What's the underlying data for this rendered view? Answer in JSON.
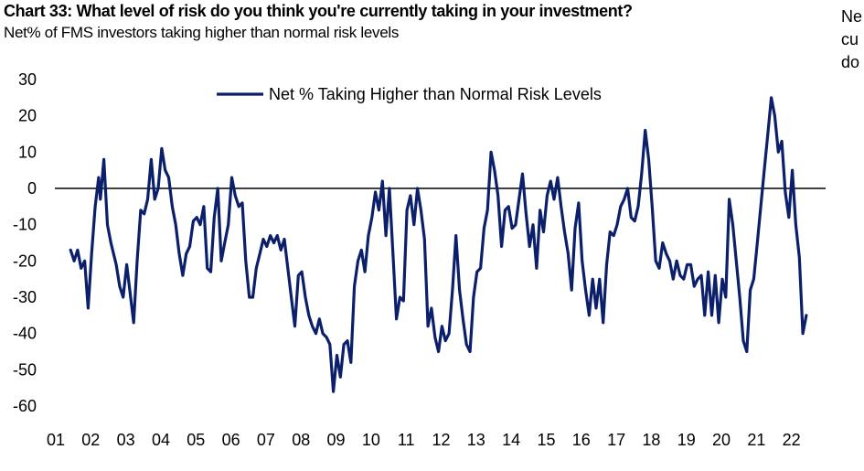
{
  "header": {
    "title": "Chart 33: What level of risk do you think you're currently taking in your investment?",
    "subtitle": "Net% of FMS investors taking higher than normal risk levels",
    "side_text": "Ne\ncu\ndo"
  },
  "chart_data": {
    "type": "line",
    "title": "Chart 33: What level of risk do you think you're currently taking in your investment?",
    "subtitle": "Net% of FMS investors taking higher than normal risk levels",
    "xlabel": "",
    "ylabel": "",
    "ylim": [
      -60,
      30
    ],
    "xlim": [
      2001,
      2023
    ],
    "yticks": [
      "30",
      "20",
      "10",
      "0",
      "-10",
      "-20",
      "-30",
      "-40",
      "-50",
      "-60"
    ],
    "xticks": [
      {
        "x": 2001,
        "label": "01"
      },
      {
        "x": 2002,
        "label": "02"
      },
      {
        "x": 2003,
        "label": "03"
      },
      {
        "x": 2004,
        "label": "04"
      },
      {
        "x": 2005,
        "label": "05"
      },
      {
        "x": 2006,
        "label": "06"
      },
      {
        "x": 2007,
        "label": "07"
      },
      {
        "x": 2008,
        "label": "08"
      },
      {
        "x": 2009,
        "label": "09"
      },
      {
        "x": 2010,
        "label": "10"
      },
      {
        "x": 2011,
        "label": "11"
      },
      {
        "x": 2012,
        "label": "12"
      },
      {
        "x": 2013,
        "label": "13"
      },
      {
        "x": 2014,
        "label": "14"
      },
      {
        "x": 2015,
        "label": "15"
      },
      {
        "x": 2016,
        "label": "16"
      },
      {
        "x": 2017,
        "label": "17"
      },
      {
        "x": 2018,
        "label": "18"
      },
      {
        "x": 2019,
        "label": "19"
      },
      {
        "x": 2020,
        "label": "20"
      },
      {
        "x": 2021,
        "label": "21"
      },
      {
        "x": 2022,
        "label": "22"
      }
    ],
    "legend_position": "top-center",
    "grid": false,
    "zero_line": true,
    "colors": {
      "series": "#0b1f6b",
      "zero_line": "#000000"
    },
    "series": [
      {
        "name": "Net % Taking Higher than Normal Risk Levels",
        "x": [
          2001.45,
          2001.55,
          2001.65,
          2001.75,
          2001.85,
          2001.95,
          2002.05,
          2002.15,
          2002.25,
          2002.3,
          2002.4,
          2002.5,
          2002.6,
          2002.75,
          2002.85,
          2002.95,
          2003.05,
          2003.15,
          2003.25,
          2003.35,
          2003.45,
          2003.55,
          2003.65,
          2003.75,
          2003.85,
          2003.95,
          2004.05,
          2004.15,
          2004.25,
          2004.35,
          2004.45,
          2004.55,
          2004.65,
          2004.75,
          2004.85,
          2004.95,
          2005.05,
          2005.15,
          2005.25,
          2005.35,
          2005.45,
          2005.55,
          2005.65,
          2005.75,
          2005.85,
          2005.95,
          2006.05,
          2006.15,
          2006.25,
          2006.35,
          2006.45,
          2006.55,
          2006.65,
          2006.75,
          2006.85,
          2006.95,
          2007.05,
          2007.15,
          2007.25,
          2007.35,
          2007.45,
          2007.55,
          2007.65,
          2007.75,
          2007.85,
          2007.95,
          2008.05,
          2008.15,
          2008.25,
          2008.35,
          2008.45,
          2008.55,
          2008.65,
          2008.75,
          2008.85,
          2008.95,
          2009.05,
          2009.15,
          2009.25,
          2009.35,
          2009.45,
          2009.55,
          2009.65,
          2009.75,
          2009.85,
          2009.95,
          2010.05,
          2010.15,
          2010.25,
          2010.35,
          2010.45,
          2010.55,
          2010.65,
          2010.75,
          2010.85,
          2010.95,
          2011.05,
          2011.15,
          2011.25,
          2011.35,
          2011.45,
          2011.55,
          2011.65,
          2011.75,
          2011.85,
          2011.95,
          2012.05,
          2012.15,
          2012.25,
          2012.35,
          2012.45,
          2012.55,
          2012.65,
          2012.75,
          2012.85,
          2012.95,
          2013.05,
          2013.15,
          2013.25,
          2013.35,
          2013.45,
          2013.55,
          2013.65,
          2013.75,
          2013.85,
          2013.95,
          2014.05,
          2014.15,
          2014.25,
          2014.35,
          2014.45,
          2014.55,
          2014.65,
          2014.75,
          2014.85,
          2014.95,
          2015.05,
          2015.15,
          2015.25,
          2015.35,
          2015.45,
          2015.55,
          2015.65,
          2015.75,
          2015.85,
          2015.95,
          2016.05,
          2016.15,
          2016.25,
          2016.35,
          2016.45,
          2016.55,
          2016.65,
          2016.75,
          2016.85,
          2016.95,
          2017.05,
          2017.15,
          2017.25,
          2017.35,
          2017.45,
          2017.55,
          2017.65,
          2017.75,
          2017.85,
          2017.95,
          2018.05,
          2018.15,
          2018.25,
          2018.35,
          2018.45,
          2018.55,
          2018.65,
          2018.75,
          2018.85,
          2018.95,
          2019.05,
          2019.15,
          2019.25,
          2019.35,
          2019.45,
          2019.55,
          2019.65,
          2019.75,
          2019.85,
          2019.95,
          2020.05,
          2020.15,
          2020.25,
          2020.35,
          2020.45,
          2020.55,
          2020.65,
          2020.75,
          2020.85,
          2020.95,
          2021.05,
          2021.15,
          2021.25,
          2021.35,
          2021.45,
          2021.55,
          2021.65,
          2021.75,
          2021.85,
          2021.95,
          2022.05,
          2022.15,
          2022.25,
          2022.35,
          2022.45
        ],
        "y": [
          -17,
          -20,
          -17,
          -22,
          -20,
          -33,
          -18,
          -5,
          3,
          -3,
          8,
          -10,
          -15,
          -21,
          -27,
          -30,
          -21,
          -29,
          -37,
          -20,
          -6,
          -7,
          -3,
          8,
          -3,
          0,
          11,
          5,
          3,
          -5,
          -10,
          -18,
          -24,
          -18,
          -16,
          -9,
          -8,
          -10,
          -5,
          -22,
          -23,
          -8,
          0,
          -20,
          -15,
          -10,
          3,
          -2,
          -5,
          -4,
          -20,
          -30,
          -30,
          -22,
          -18,
          -14,
          -16,
          -13,
          -15,
          -13,
          -17,
          -14,
          -22,
          -30,
          -38,
          -24,
          -23,
          -30,
          -35,
          -38,
          -40,
          -36,
          -40,
          -41,
          -43,
          -56,
          -46,
          -52,
          -43,
          -42,
          -48,
          -27,
          -20,
          -17,
          -23,
          -13,
          -8,
          -1,
          -6,
          2,
          -13,
          0,
          -18,
          -36,
          -30,
          -31,
          -6,
          -2,
          -10,
          0,
          -6,
          -14,
          -38,
          -33,
          -41,
          -45,
          -38,
          -42,
          -40,
          -28,
          -13,
          -28,
          -36,
          -43,
          -45,
          -30,
          -23,
          -22,
          -11,
          -6,
          10,
          5,
          -2,
          -16,
          -6,
          -5,
          -11,
          -10,
          -3,
          4,
          -7,
          -16,
          -10,
          -22,
          -6,
          -12,
          -2,
          2,
          -3,
          3,
          -5,
          -12,
          -18,
          -28,
          -11,
          -4,
          -20,
          -28,
          -35,
          -25,
          -33,
          -25,
          -37,
          -21,
          -12,
          -13,
          -10,
          -5,
          -3,
          0,
          -8,
          -9,
          -5,
          4,
          16,
          8,
          -5,
          -20,
          -22,
          -15,
          -18,
          -20,
          -25,
          -20,
          -24,
          -25,
          -21,
          -21,
          -27,
          -25,
          -24,
          -35,
          -23,
          -35,
          -24,
          -37,
          -25,
          -30,
          -3,
          -10,
          -20,
          -30,
          -42,
          -45,
          -28,
          -25,
          -15,
          -5,
          5,
          15,
          25,
          20,
          10,
          13,
          -1,
          -8,
          5,
          -10,
          -19,
          -40,
          -35
        ]
      }
    ]
  }
}
